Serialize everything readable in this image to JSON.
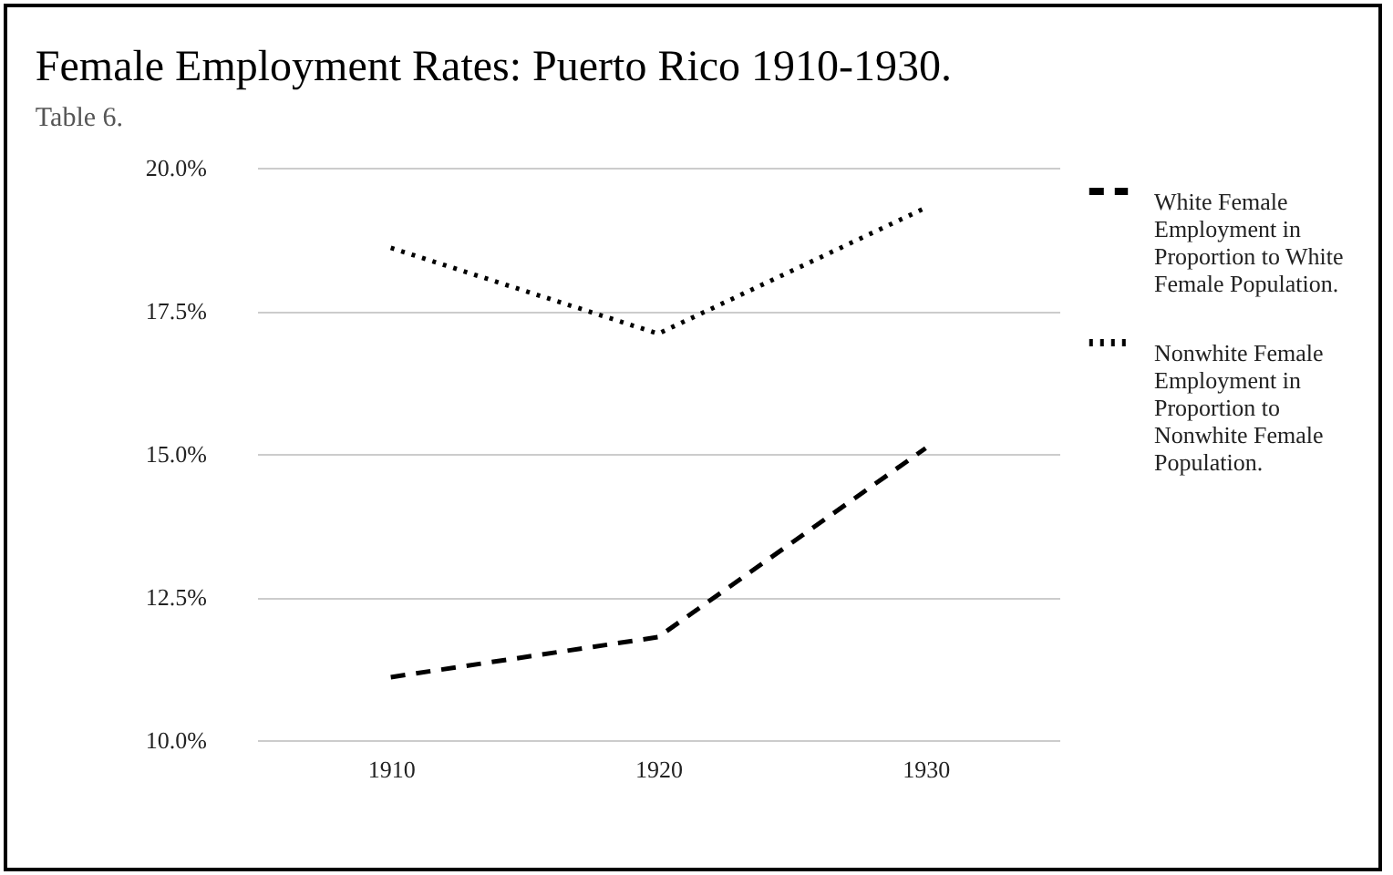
{
  "chart_data": {
    "type": "line",
    "title": "Female Employment Rates: Puerto Rico 1910-1930.",
    "subtitle": "Table 6.",
    "categories": [
      "1910",
      "1920",
      "1930"
    ],
    "series": [
      {
        "name": "White Female Employment in Proportion to White Female Population.",
        "color": "#000000",
        "line_style": "dashed",
        "values": [
          11.1,
          11.8,
          15.1
        ]
      },
      {
        "name": "Nonwhite Female Employment in Proportion to Nonwhite Female Population.",
        "color": "#000000",
        "line_style": "dotted",
        "values": [
          18.6,
          17.1,
          19.3
        ]
      }
    ],
    "ylim": [
      10,
      20
    ],
    "yticks": [
      {
        "value": 10,
        "label": "10.0%"
      },
      {
        "value": 12.5,
        "label": "12.5%"
      },
      {
        "value": 15,
        "label": "15.0%"
      },
      {
        "value": 17.5,
        "label": "17.5%"
      },
      {
        "value": 20,
        "label": "20.0%"
      }
    ],
    "grid": "y",
    "legend": "right",
    "marker": "none"
  }
}
